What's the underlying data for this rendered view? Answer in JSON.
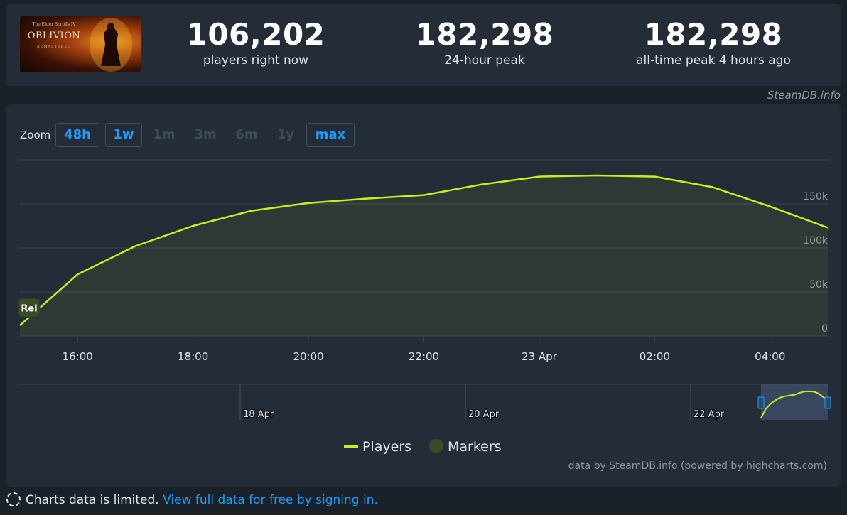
{
  "game": {
    "cover_alt": "Oblivion Remastered cover",
    "cover_top_text": "The Elder Scrolls IV",
    "cover_title": "OBLIVION",
    "cover_subtitle": "REMASTERED"
  },
  "stats": [
    {
      "value": "106,202",
      "label": "players right now"
    },
    {
      "value": "182,298",
      "label": "24-hour peak"
    },
    {
      "value": "182,298",
      "label": "all-time peak 4 hours ago"
    }
  ],
  "credit_top": "SteamDB.info",
  "zoom": {
    "label": "Zoom",
    "buttons": [
      {
        "label": "48h",
        "state": "active"
      },
      {
        "label": "1w",
        "state": "active"
      },
      {
        "label": "1m",
        "state": "disabled"
      },
      {
        "label": "3m",
        "state": "disabled"
      },
      {
        "label": "6m",
        "state": "disabled"
      },
      {
        "label": "1y",
        "state": "disabled"
      },
      {
        "label": "max",
        "state": "active"
      }
    ]
  },
  "chart_data": {
    "type": "area",
    "series": [
      {
        "name": "Players",
        "color": "#c6f01b",
        "x": [
          "15:00",
          "16:00",
          "17:00",
          "18:00",
          "19:00",
          "20:00",
          "21:00",
          "22:00",
          "23:00",
          "23 Apr",
          "01:00",
          "02:00",
          "03:00",
          "04:00",
          "05:00"
        ],
        "values": [
          12000,
          70000,
          102000,
          125000,
          142000,
          151000,
          156000,
          160000,
          172000,
          181000,
          182298,
          181000,
          169000,
          147000,
          123000
        ]
      }
    ],
    "y_ticks": [
      "0",
      "50k",
      "100k",
      "150k"
    ],
    "ylim": [
      0,
      200000
    ],
    "x_ticks": [
      "16:00",
      "18:00",
      "20:00",
      "22:00",
      "23 Apr",
      "02:00",
      "04:00"
    ],
    "grid": true,
    "marker": {
      "label": "Rel",
      "x": "15:00",
      "value": 32000
    },
    "navigator_ticks": [
      "18 Apr",
      "20 Apr",
      "22 Apr"
    ],
    "legend": [
      {
        "name": "Players",
        "color": "#c6f01b"
      },
      {
        "name": "Markers",
        "color": "#3b4a2a"
      }
    ],
    "legend_position": "bottom-center"
  },
  "credit_bottom": "data by SteamDB.info (powered by highcharts.com)",
  "limited": {
    "text": "Charts data is limited.",
    "link": "View full data for free by signing in."
  }
}
